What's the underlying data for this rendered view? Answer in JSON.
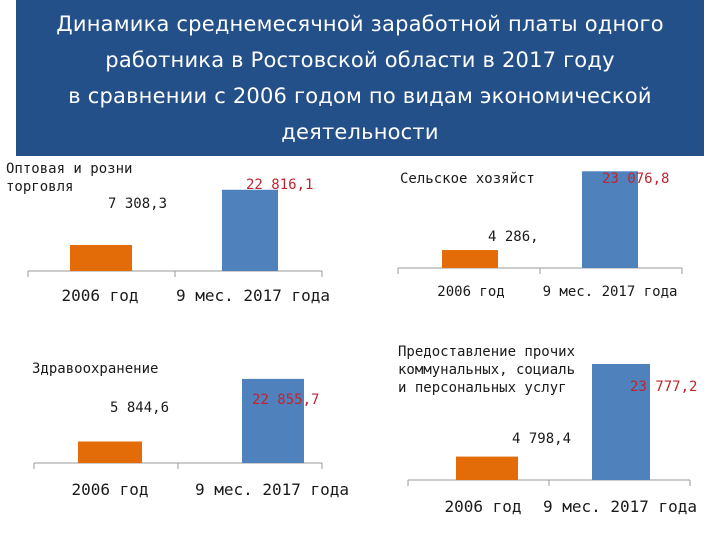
{
  "header": {
    "title": "Динамика среднемесячной заработной платы одного\nработника в Ростовской области в 2017 году\nв сравнении с 2006 годом по видам экономической\nдеятельности"
  },
  "colors": {
    "header_bg": "#24508a",
    "bar_2006": "#e36c09",
    "bar_2017": "#4f81bd",
    "value_2006_text": "#1a1a1a",
    "value_2017_text": "#c0242e",
    "axis": "#9a9a9a"
  },
  "chart_data": [
    {
      "type": "bar",
      "title": "Оптовая и розни\nторговля",
      "categories": [
        "2006 год",
        "9 мес. 2017 года"
      ],
      "values": [
        7308.3,
        22816.1
      ],
      "value_labels": [
        "7 308,3",
        "22 816,1"
      ],
      "ylim": [
        0,
        25000
      ]
    },
    {
      "type": "bar",
      "title": "Сельское хозяйст",
      "categories": [
        "2006 год",
        "9 мес. 2017 года"
      ],
      "values": [
        4286,
        23076.8
      ],
      "value_labels": [
        "4 286,",
        "23 076,8"
      ],
      "ylim": [
        0,
        21000
      ]
    },
    {
      "type": "bar",
      "title": "Здравоохранение",
      "categories": [
        "2006 год",
        "9 мес. 2017 года"
      ],
      "values": [
        5844.6,
        22855.7
      ],
      "value_labels": [
        "5 844,6",
        "22 855,7"
      ],
      "ylim": [
        0,
        25000
      ]
    },
    {
      "type": "bar",
      "title": "Предоставление прочих\nкоммунальных, социаль\nи персональных услуг",
      "categories": [
        "2006 год",
        "9 мес. 2017 года"
      ],
      "values": [
        4798.4,
        23777.2
      ],
      "value_labels": [
        "4 798,4",
        "23 777,2"
      ],
      "ylim": [
        0,
        25000
      ]
    }
  ]
}
